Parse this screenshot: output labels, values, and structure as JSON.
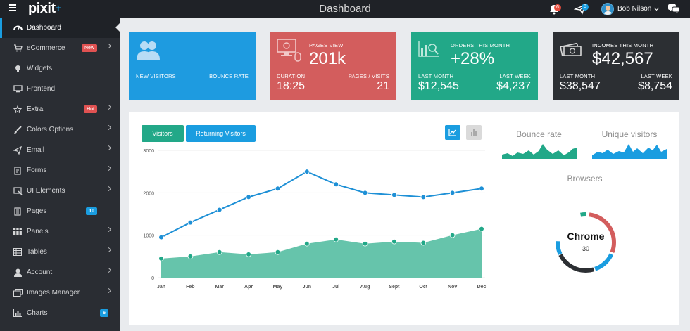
{
  "topbar": {
    "logo": "pixit",
    "logo_plus": "+",
    "title": "Dashboard",
    "notifications_count": "6",
    "messages_count": "8",
    "user_name": "Bob Nilson"
  },
  "sidebar": {
    "items": [
      {
        "label": "Dashboard",
        "icon": "dashboard-icon"
      },
      {
        "label": "eCommerce",
        "icon": "cart-icon",
        "tag": "New"
      },
      {
        "label": "Widgets",
        "icon": "lightbulb-icon"
      },
      {
        "label": "Frontend",
        "icon": "monitor-icon"
      },
      {
        "label": "Extra",
        "icon": "star-icon",
        "tag": "Hot"
      },
      {
        "label": "Colors Options",
        "icon": "brush-icon"
      },
      {
        "label": "Email",
        "icon": "paper-plane-icon"
      },
      {
        "label": "Forms",
        "icon": "form-icon"
      },
      {
        "label": "UI Elements",
        "icon": "ui-elements-icon"
      },
      {
        "label": "Pages",
        "icon": "pages-icon",
        "count": "10"
      },
      {
        "label": "Panels",
        "icon": "panels-icon"
      },
      {
        "label": "Tables",
        "icon": "table-icon"
      },
      {
        "label": "Account",
        "icon": "user-icon"
      },
      {
        "label": "Images Manager",
        "icon": "images-icon"
      },
      {
        "label": "Charts",
        "icon": "bar-chart-icon",
        "count": "6"
      }
    ]
  },
  "cards": {
    "visitors": {
      "left_label": "NEW VISITORS",
      "right_label": "BOUNCE RATE",
      "color": "#1e9be0"
    },
    "pageviews": {
      "title": "PAGES VIEW",
      "value": "201k",
      "left_label": "DURATION",
      "left_value": "18:25",
      "right_label": "PAGES / VISITS",
      "right_value": "21",
      "color": "#d35d5d"
    },
    "orders": {
      "title": "ORDERS THIS MONTH",
      "value": "+28%",
      "left_label": "LAST MONTH",
      "left_value": "$12,545",
      "right_label": "LAST WEEK",
      "right_value": "$4,237",
      "color": "#22a888"
    },
    "incomes": {
      "title": "INCOMES THIS MONTH",
      "value": "$42,567",
      "left_label": "LAST MONTH",
      "left_value": "$38,547",
      "right_label": "LAST WEEK",
      "right_value": "$8,754",
      "color": "#2c2f33"
    }
  },
  "main": {
    "tabs": [
      {
        "label": "Visitors"
      },
      {
        "label": "Returning Visitors"
      }
    ],
    "bounce_title": "Bounce rate",
    "unique_title": "Unique visitors",
    "browsers_title": "Browsers",
    "donut_label": "Chrome",
    "donut_value": "30"
  },
  "chart_data": {
    "type": "line",
    "categories": [
      "Jan",
      "Feb",
      "Mar",
      "Apr",
      "May",
      "Jun",
      "Jul",
      "Aug",
      "Sept",
      "Oct",
      "Nov",
      "Dec"
    ],
    "yticks": [
      "3000",
      "2000",
      "1000",
      "0"
    ],
    "ylim": [
      0,
      3000
    ],
    "series": [
      {
        "values": [
          950,
          1300,
          1600,
          1900,
          2100,
          2500,
          2200,
          2000,
          1950,
          1900,
          2000,
          2100
        ],
        "color": "#1e90d6",
        "style": "line"
      },
      {
        "values": [
          450,
          500,
          600,
          550,
          600,
          800,
          900,
          800,
          850,
          820,
          1000,
          1150
        ],
        "color": "#5ec1a7",
        "style": "area"
      }
    ],
    "grid": true
  },
  "colors": {
    "accent": "#1a9de0",
    "green": "#22a888",
    "red": "#d35d5d",
    "dark": "#2c2f33"
  }
}
